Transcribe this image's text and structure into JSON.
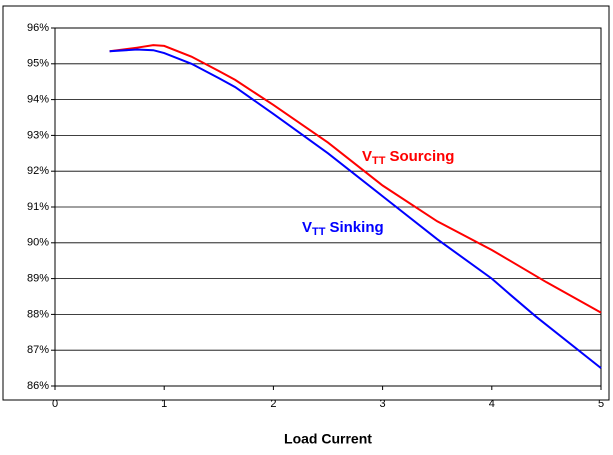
{
  "chart_data": {
    "type": "line",
    "xlabel": "Load Current",
    "xlim": [
      0,
      5
    ],
    "xticks": [
      0,
      1,
      2,
      3,
      4,
      5
    ],
    "ylim": [
      86,
      96
    ],
    "yticks": [
      {
        "value": 86,
        "label": "86%"
      },
      {
        "value": 87,
        "label": "87%"
      },
      {
        "value": 88,
        "label": "88%"
      },
      {
        "value": 89,
        "label": "89%"
      },
      {
        "value": 90,
        "label": "90%"
      },
      {
        "value": 91,
        "label": "91%"
      },
      {
        "value": 92,
        "label": "92%"
      },
      {
        "value": 93,
        "label": "93%"
      },
      {
        "value": 94,
        "label": "94%"
      },
      {
        "value": 95,
        "label": "95%"
      },
      {
        "value": 96,
        "label": "96%"
      }
    ],
    "grid": true,
    "series": [
      {
        "label": {
          "base": "V",
          "sub": "TT",
          "text": "Sourcing"
        },
        "color": "#ff0000",
        "x": [
          0.5,
          0.75,
          0.9,
          1.0,
          1.25,
          1.5,
          1.65,
          2.0,
          2.5,
          3.0,
          3.5,
          4.0,
          4.5,
          5.0
        ],
        "values": [
          95.35,
          95.45,
          95.52,
          95.5,
          95.2,
          94.8,
          94.55,
          93.85,
          92.8,
          91.6,
          90.6,
          89.8,
          88.9,
          88.05
        ]
      },
      {
        "label": {
          "base": "V",
          "sub": "TT",
          "text": "Sinking"
        },
        "color": "#0000ff",
        "x": [
          0.5,
          0.75,
          0.9,
          1.0,
          1.25,
          1.5,
          1.65,
          2.0,
          2.5,
          3.0,
          3.5,
          4.0,
          4.15,
          4.4,
          5.0
        ],
        "values": [
          95.35,
          95.4,
          95.38,
          95.3,
          95.0,
          94.6,
          94.35,
          93.6,
          92.5,
          91.3,
          90.1,
          89.0,
          88.6,
          87.95,
          86.5
        ]
      }
    ]
  }
}
